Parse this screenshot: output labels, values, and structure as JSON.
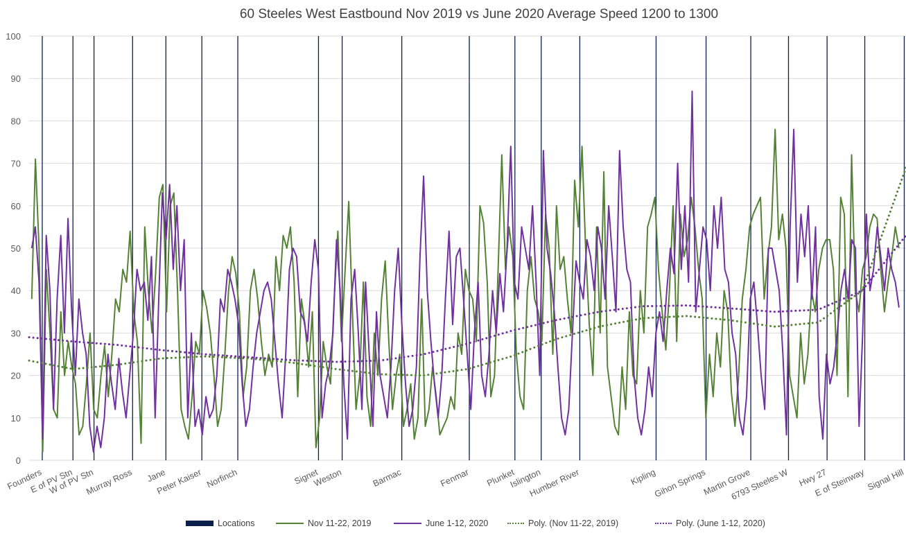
{
  "chart_data": {
    "type": "line",
    "title": "60 Steeles West Eastbound Nov 2019 vs June 2020 Average Speed 1200 to 1300",
    "xlabel": "",
    "ylabel": "",
    "ylim": [
      0,
      100
    ],
    "yticks": [
      0,
      10,
      20,
      30,
      40,
      50,
      60,
      70,
      80,
      90,
      100
    ],
    "grid": true,
    "legend_position": "bottom",
    "x_range": [
      0,
      100
    ],
    "colors": {
      "locations": "#0b1f4d",
      "nov": "#548235",
      "june": "#7030a0",
      "grid": "#d9d9d9",
      "text": "#595959"
    },
    "locations": [
      {
        "name": "Founders",
        "x": 1.5
      },
      {
        "name": "E of PV Stn",
        "x": 5.0
      },
      {
        "name": "W of PV Stn",
        "x": 7.4
      },
      {
        "name": "Murray Ross",
        "x": 11.8
      },
      {
        "name": "Jane",
        "x": 15.6
      },
      {
        "name": "Peter Kaiser",
        "x": 19.7
      },
      {
        "name": "Norfinch",
        "x": 23.8
      },
      {
        "name": "Signet",
        "x": 33.0
      },
      {
        "name": "Weston",
        "x": 35.7
      },
      {
        "name": "Barmac",
        "x": 42.5
      },
      {
        "name": "Fenmar",
        "x": 50.2
      },
      {
        "name": "Plunket",
        "x": 55.4
      },
      {
        "name": "Islington",
        "x": 58.4
      },
      {
        "name": "Humber River",
        "x": 62.8
      },
      {
        "name": "Kipling",
        "x": 71.5
      },
      {
        "name": "Gihon Springs",
        "x": 77.2
      },
      {
        "name": "Martin Grove",
        "x": 82.3
      },
      {
        "name": "6793 Steeles W",
        "x": 86.6
      },
      {
        "name": "Hwy 27",
        "x": 91.0
      },
      {
        "name": "E of Steinway",
        "x": 95.3
      },
      {
        "name": "Signal Hill",
        "x": 99.8
      }
    ],
    "series": [
      {
        "name": "Nov 11-22, 2019",
        "style": "solid",
        "x_start": 0.3,
        "x_end": 99.2,
        "values": [
          38,
          71,
          50,
          2,
          45,
          30,
          12,
          10,
          35,
          20,
          28,
          22,
          18,
          6,
          8,
          18,
          30,
          12,
          10,
          20,
          27,
          15,
          25,
          38,
          35,
          45,
          42,
          54,
          35,
          28,
          4,
          55,
          40,
          30,
          44,
          62,
          65,
          35,
          60,
          63,
          40,
          12,
          8,
          5,
          15,
          28,
          25,
          40,
          36,
          30,
          20,
          8,
          12,
          25,
          40,
          48,
          44,
          35,
          15,
          22,
          40,
          45,
          38,
          28,
          20,
          25,
          22,
          48,
          40,
          53,
          50,
          55,
          42,
          15,
          38,
          32,
          22,
          35,
          3,
          10,
          28,
          22,
          18,
          38,
          54,
          28,
          45,
          61,
          35,
          12,
          20,
          42,
          15,
          8,
          30,
          20,
          38,
          47,
          28,
          12,
          20,
          25,
          8,
          12,
          18,
          5,
          10,
          38,
          8,
          12,
          22,
          15,
          6,
          8,
          10,
          15,
          12,
          30,
          25,
          45,
          40,
          38,
          28,
          60,
          56,
          42,
          15,
          20,
          45,
          72,
          45,
          55,
          48,
          25,
          15,
          12,
          40,
          48,
          38,
          35,
          28,
          58,
          50,
          25,
          60,
          45,
          48,
          38,
          30,
          66,
          55,
          74,
          50,
          32,
          20,
          55,
          30,
          68,
          22,
          15,
          8,
          6,
          22,
          12,
          35,
          20,
          18,
          40,
          30,
          55,
          58,
          62,
          45,
          35,
          26,
          40,
          60,
          28,
          58,
          48,
          52,
          62,
          55,
          45,
          38,
          10,
          25,
          15,
          30,
          22,
          40,
          35,
          16,
          8,
          20,
          38,
          45,
          55,
          58,
          60,
          62,
          38,
          48,
          55,
          78,
          52,
          58,
          50,
          20,
          15,
          10,
          30,
          18,
          25,
          40,
          35,
          45,
          50,
          52,
          52,
          45,
          20,
          62,
          58,
          15,
          72,
          40,
          35,
          45,
          48,
          55,
          58,
          57,
          45,
          35,
          42,
          48,
          55,
          50
        ]
      },
      {
        "name": "June 1-12, 2020",
        "style": "solid",
        "x_start": 0.3,
        "x_end": 99.2,
        "values": [
          50,
          55,
          42,
          5,
          53,
          40,
          12,
          38,
          53,
          30,
          57,
          35,
          20,
          38,
          30,
          25,
          8,
          2,
          8,
          3,
          10,
          25,
          18,
          12,
          24,
          16,
          10,
          20,
          30,
          45,
          40,
          42,
          33,
          48,
          10,
          38,
          63,
          52,
          65,
          45,
          60,
          40,
          52,
          10,
          30,
          8,
          12,
          6,
          15,
          10,
          12,
          20,
          38,
          35,
          45,
          42,
          38,
          32,
          18,
          8,
          12,
          22,
          30,
          35,
          40,
          42,
          38,
          28,
          18,
          10,
          25,
          45,
          50,
          48,
          35,
          33,
          28,
          42,
          52,
          45,
          10,
          18,
          22,
          30,
          52,
          40,
          18,
          5,
          38,
          45,
          30,
          12,
          42,
          25,
          8,
          35,
          20,
          15,
          10,
          22,
          40,
          50,
          32,
          18,
          8,
          12,
          22,
          48,
          67,
          40,
          28,
          18,
          10,
          20,
          38,
          54,
          32,
          48,
          50,
          38,
          25,
          12,
          30,
          42,
          20,
          15,
          25,
          40,
          30,
          44,
          35,
          50,
          74,
          42,
          38,
          55,
          50,
          45,
          60,
          42,
          20,
          73,
          50,
          44,
          35,
          22,
          10,
          6,
          12,
          30,
          47,
          42,
          38,
          52,
          48,
          40,
          55,
          50,
          38,
          60,
          48,
          35,
          73,
          55,
          45,
          42,
          20,
          10,
          6,
          12,
          22,
          15,
          30,
          35,
          28,
          40,
          50,
          44,
          70,
          45,
          60,
          42,
          87,
          35,
          45,
          55,
          52,
          40,
          60,
          50,
          62,
          45,
          42,
          30,
          25,
          10,
          6,
          15,
          38,
          42,
          32,
          20,
          12,
          50,
          50,
          45,
          40,
          25,
          6,
          55,
          78,
          42,
          58,
          48,
          60,
          38,
          55,
          15,
          5,
          25,
          18,
          22,
          30,
          40,
          45,
          38,
          52,
          50,
          8,
          30,
          58,
          40,
          45,
          55,
          48,
          40,
          50,
          45,
          42,
          36
        ]
      },
      {
        "name": "Poly. (Nov 11-22, 2019)",
        "style": "dotted",
        "x": [
          0,
          5,
          10,
          15,
          20,
          25,
          30,
          35,
          40,
          45,
          50,
          55,
          60,
          65,
          70,
          75,
          80,
          85,
          90,
          95,
          100
        ],
        "values": [
          23.5,
          21.5,
          22.5,
          24,
          24.5,
          24,
          23,
          21.5,
          20.3,
          20,
          21.5,
          24.5,
          28.5,
          31.5,
          33.5,
          34,
          33,
          31.5,
          32.5,
          40,
          69
        ]
      },
      {
        "name": "Poly. (June 1-12, 2020)",
        "style": "dotted",
        "x": [
          0,
          5,
          10,
          15,
          20,
          25,
          30,
          35,
          40,
          45,
          50,
          55,
          60,
          65,
          70,
          75,
          80,
          85,
          90,
          95,
          100
        ],
        "values": [
          29,
          28,
          27.2,
          26,
          25,
          24.3,
          23.6,
          23.2,
          23.5,
          25,
          27.5,
          30.5,
          33,
          35,
          36.3,
          36.5,
          35.8,
          35,
          35.5,
          40,
          53
        ]
      }
    ],
    "legend": [
      {
        "label": "Locations",
        "kind": "bar"
      },
      {
        "label": "Nov 11-22, 2019",
        "kind": "line"
      },
      {
        "label": "June 1-12, 2020",
        "kind": "line"
      },
      {
        "label": "Poly. (Nov 11-22, 2019)",
        "kind": "dotted"
      },
      {
        "label": "Poly. (June 1-12, 2020)",
        "kind": "dotted"
      }
    ]
  }
}
